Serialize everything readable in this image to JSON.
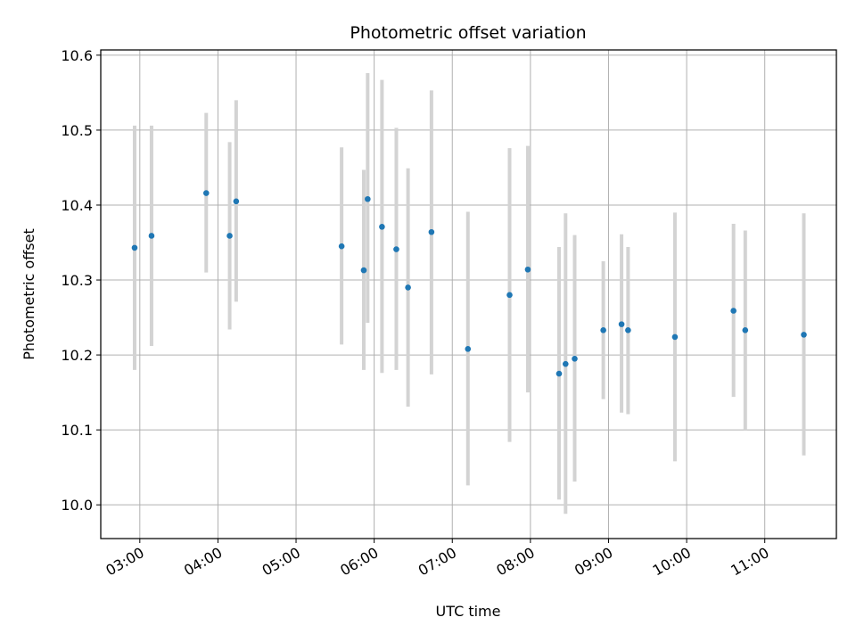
{
  "chart_data": {
    "type": "scatter",
    "title": "Photometric offset variation",
    "xlabel": "UTC time",
    "ylabel": "Photometric offset",
    "xlim": [
      "02:30",
      "11:55"
    ],
    "ylim": [
      9.955,
      10.607
    ],
    "grid": true,
    "x_ticks": [
      "03:00",
      "04:00",
      "05:00",
      "06:00",
      "07:00",
      "08:00",
      "09:00",
      "10:00",
      "11:00"
    ],
    "y_ticks": [
      "10.0",
      "10.1",
      "10.2",
      "10.3",
      "10.4",
      "10.5",
      "10.6"
    ],
    "point_color": "#1f77b4",
    "errorbar_color": "#d3d3d3",
    "points": [
      {
        "x": "02:56",
        "y": 10.343,
        "ylow": 10.18,
        "yhigh": 10.506
      },
      {
        "x": "03:09",
        "y": 10.359,
        "ylow": 10.212,
        "yhigh": 10.506
      },
      {
        "x": "03:51",
        "y": 10.416,
        "ylow": 10.31,
        "yhigh": 10.523
      },
      {
        "x": "04:09",
        "y": 10.359,
        "ylow": 10.234,
        "yhigh": 10.484
      },
      {
        "x": "04:14",
        "y": 10.405,
        "ylow": 10.271,
        "yhigh": 10.54
      },
      {
        "x": "05:35",
        "y": 10.345,
        "ylow": 10.214,
        "yhigh": 10.477
      },
      {
        "x": "05:52",
        "y": 10.313,
        "ylow": 10.18,
        "yhigh": 10.447
      },
      {
        "x": "05:55",
        "y": 10.408,
        "ylow": 10.243,
        "yhigh": 10.576
      },
      {
        "x": "06:06",
        "y": 10.371,
        "ylow": 10.176,
        "yhigh": 10.567
      },
      {
        "x": "06:17",
        "y": 10.341,
        "ylow": 10.18,
        "yhigh": 10.503
      },
      {
        "x": "06:26",
        "y": 10.29,
        "ylow": 10.131,
        "yhigh": 10.449
      },
      {
        "x": "06:44",
        "y": 10.364,
        "ylow": 10.174,
        "yhigh": 10.553
      },
      {
        "x": "07:12",
        "y": 10.208,
        "ylow": 10.026,
        "yhigh": 10.391
      },
      {
        "x": "07:44",
        "y": 10.28,
        "ylow": 10.084,
        "yhigh": 10.476
      },
      {
        "x": "07:58",
        "y": 10.314,
        "ylow": 10.15,
        "yhigh": 10.479
      },
      {
        "x": "08:22",
        "y": 10.175,
        "ylow": 10.007,
        "yhigh": 10.344
      },
      {
        "x": "08:27",
        "y": 10.188,
        "ylow": 9.988,
        "yhigh": 10.389
      },
      {
        "x": "08:34",
        "y": 10.195,
        "ylow": 10.031,
        "yhigh": 10.36
      },
      {
        "x": "08:56",
        "y": 10.233,
        "ylow": 10.141,
        "yhigh": 10.325
      },
      {
        "x": "09:10",
        "y": 10.241,
        "ylow": 10.123,
        "yhigh": 10.361
      },
      {
        "x": "09:15",
        "y": 10.233,
        "ylow": 10.121,
        "yhigh": 10.344
      },
      {
        "x": "09:51",
        "y": 10.224,
        "ylow": 10.058,
        "yhigh": 10.39
      },
      {
        "x": "10:36",
        "y": 10.259,
        "ylow": 10.144,
        "yhigh": 10.375
      },
      {
        "x": "10:45",
        "y": 10.233,
        "ylow": 10.1,
        "yhigh": 10.366
      },
      {
        "x": "11:30",
        "y": 10.227,
        "ylow": 10.066,
        "yhigh": 10.389
      }
    ]
  }
}
